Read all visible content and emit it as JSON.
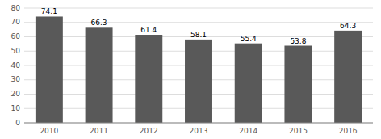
{
  "chart_data": {
    "type": "bar",
    "categories": [
      "2010",
      "2011",
      "2012",
      "2013",
      "2014",
      "2015",
      "2016"
    ],
    "values": [
      74.1,
      66.3,
      61.4,
      58.1,
      55.4,
      53.8,
      64.3
    ],
    "color": "#595959",
    "ylim": [
      0,
      80
    ],
    "yticks": [
      0,
      10,
      20,
      30,
      40,
      50,
      60,
      70,
      80
    ],
    "grid": true,
    "data_labels": true
  }
}
